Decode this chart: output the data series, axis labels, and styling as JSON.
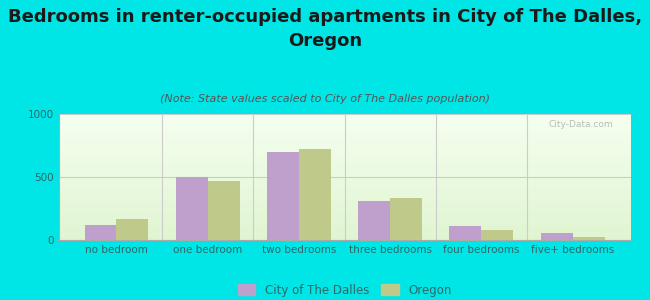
{
  "title_line1": "Bedrooms in renter-occupied apartments in City of The Dalles,",
  "title_line2": "Oregon",
  "subtitle": "(Note: State values scaled to City of The Dalles population)",
  "categories": [
    "no bedroom",
    "one bedroom",
    "two bedrooms",
    "three bedrooms",
    "four bedrooms",
    "five+ bedrooms"
  ],
  "city_values": [
    120,
    500,
    700,
    310,
    110,
    55
  ],
  "state_values": [
    165,
    470,
    725,
    330,
    80,
    20
  ],
  "city_color": "#bf9fcc",
  "state_color": "#bec98a",
  "background_color": "#00e5e5",
  "ylim": [
    0,
    1000
  ],
  "yticks": [
    0,
    500,
    1000
  ],
  "title_fontsize": 13,
  "subtitle_fontsize": 8,
  "tick_fontsize": 7.5,
  "legend_label_city": "City of The Dalles",
  "legend_label_state": "Oregon",
  "bar_width": 0.35,
  "watermark": "City-Data.com"
}
